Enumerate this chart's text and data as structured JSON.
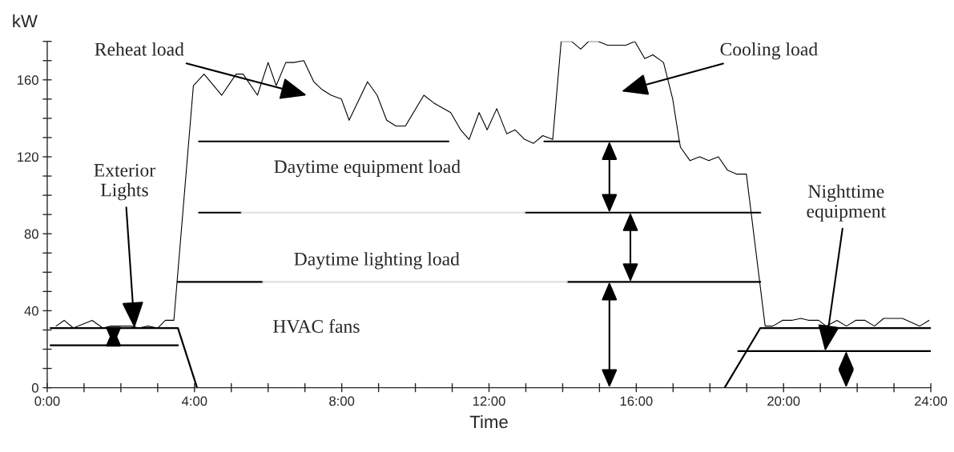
{
  "chart_data": {
    "type": "line",
    "xlabel": "Time",
    "ylabel": "kW",
    "xlim": [
      0,
      24
    ],
    "ylim": [
      0,
      180
    ],
    "xticks": [
      {
        "value": 0,
        "label": "0:00"
      },
      {
        "value": 1,
        "label": null
      },
      {
        "value": 2,
        "label": null
      },
      {
        "value": 3,
        "label": null
      },
      {
        "value": 4,
        "label": "4:00"
      },
      {
        "value": 5,
        "label": null
      },
      {
        "value": 6,
        "label": null
      },
      {
        "value": 7,
        "label": null
      },
      {
        "value": 8,
        "label": "8:00"
      },
      {
        "value": 9,
        "label": null
      },
      {
        "value": 10,
        "label": null
      },
      {
        "value": 11,
        "label": null
      },
      {
        "value": 12,
        "label": "12:00"
      },
      {
        "value": 13,
        "label": null
      },
      {
        "value": 14,
        "label": null
      },
      {
        "value": 15,
        "label": null
      },
      {
        "value": 16,
        "label": "16:00"
      },
      {
        "value": 17,
        "label": null
      },
      {
        "value": 18,
        "label": null
      },
      {
        "value": 19,
        "label": null
      },
      {
        "value": 20,
        "label": "20:00"
      },
      {
        "value": 21,
        "label": null
      },
      {
        "value": 22,
        "label": null
      },
      {
        "value": 23,
        "label": null
      },
      {
        "value": 24,
        "label": "24:00"
      }
    ],
    "yticks": [
      0,
      {
        "value": 10,
        "label": null
      },
      {
        "value": 20,
        "label": null
      },
      {
        "value": 30,
        "label": null
      },
      40,
      {
        "value": 50,
        "label": null
      },
      {
        "value": 60,
        "label": null
      },
      {
        "value": 70,
        "label": null
      },
      80,
      {
        "value": 90,
        "label": null
      },
      {
        "value": 100,
        "label": null
      },
      {
        "value": 110,
        "label": null
      },
      120,
      {
        "value": 130,
        "label": null
      },
      {
        "value": 140,
        "label": null
      },
      {
        "value": 150,
        "label": null
      },
      160,
      {
        "value": 170,
        "label": null
      },
      {
        "value": 180,
        "label": null
      }
    ],
    "grid": false,
    "legend": false,
    "marker": "none",
    "line_style": "solid",
    "series": [
      {
        "color": "#000000",
        "x": [
          0.24,
          0.46,
          0.71,
          1.22,
          1.51,
          1.73,
          2.27,
          2.49,
          2.74,
          3.0,
          3.21,
          3.44,
          3.97,
          4.26,
          4.74,
          5.13,
          5.32,
          5.71,
          6.0,
          6.22,
          6.48,
          6.69,
          6.97,
          7.24,
          7.46,
          7.71,
          7.99,
          8.2,
          8.7,
          8.96,
          9.22,
          9.47,
          9.73,
          10.23,
          10.5,
          10.96,
          11.23,
          11.46,
          11.73,
          11.95,
          12.21,
          12.48,
          12.71,
          12.97,
          13.21,
          13.46,
          13.73,
          13.96,
          14.24,
          14.49,
          14.71,
          14.96,
          15.22,
          15.72,
          15.96,
          16.23,
          16.45,
          16.74,
          16.99,
          17.17,
          17.2,
          17.46,
          17.72,
          17.97,
          18.23,
          18.48,
          18.73,
          18.99,
          19.5,
          19.71,
          19.97,
          20.22,
          20.47,
          20.69,
          20.95,
          21.16,
          21.45,
          21.71,
          21.96,
          22.21,
          22.47,
          22.72,
          23.23,
          23.7,
          23.95
        ],
        "values": [
          32,
          35,
          31,
          35,
          31,
          32,
          32,
          31,
          32,
          31,
          35,
          35,
          157,
          163,
          152,
          163,
          163,
          152,
          169,
          157,
          169,
          169,
          170,
          159,
          155,
          152,
          150,
          139,
          159,
          152,
          139,
          136,
          136,
          152,
          148,
          143,
          134,
          129,
          143,
          134,
          145,
          132,
          134,
          129,
          127,
          131,
          129,
          180,
          180,
          176,
          180,
          180,
          178,
          178,
          180,
          171,
          173,
          169,
          150,
          128,
          125,
          118,
          120,
          118,
          120,
          113,
          111,
          111,
          32,
          32,
          35,
          35,
          36,
          35,
          35,
          32,
          35,
          32,
          35,
          35,
          32,
          36,
          36,
          32,
          35
        ]
      },
      {
        "color": "#000000",
        "x": [
          0.09,
          3.55,
          4.07
        ],
        "values": [
          31,
          31,
          0
        ]
      },
      {
        "color": "#000000",
        "x": [
          0.09,
          3.55
        ],
        "values": [
          22,
          22
        ]
      },
      {
        "color": "#000000",
        "x": [
          18.4,
          19.37,
          24
        ],
        "values": [
          0,
          31,
          31
        ]
      },
      {
        "color": "#000000",
        "x": [
          18.77,
          24
        ],
        "values": [
          19,
          19
        ]
      },
      {
        "color": "#000000",
        "x": [
          4.12,
          10.9,
          12.2,
          13.5,
          17.17
        ],
        "values": [
          128,
          128,
          null,
          128,
          128
        ]
      },
      {
        "color": "#000000",
        "x": [
          4.12,
          5.28,
          9.0,
          12.97,
          19.37
        ],
        "values": [
          91,
          91,
          null,
          91,
          91
        ]
      },
      {
        "color": "#e0e0e0",
        "x": [
          5.28,
          12.97
        ],
        "values": [
          91,
          91
        ]
      },
      {
        "color": "#000000",
        "x": [
          3.54,
          5.86,
          10.0,
          14.12,
          19.37
        ],
        "values": [
          55,
          55,
          null,
          55,
          55
        ]
      },
      {
        "color": "#e0e0e0",
        "x": [
          5.86,
          14.12
        ],
        "values": [
          55,
          55
        ]
      }
    ],
    "annotations": [
      "Reheat load",
      "Cooling load",
      {
        "text": "Exterior\nLights",
        "x": 2.37,
        "y": 31
      },
      {
        "text": "Nighttime\nequipment",
        "x": 21.13,
        "y": 19
      },
      "Daytime equipment load",
      "Daytime lighting load",
      "HVAC fans"
    ]
  }
}
